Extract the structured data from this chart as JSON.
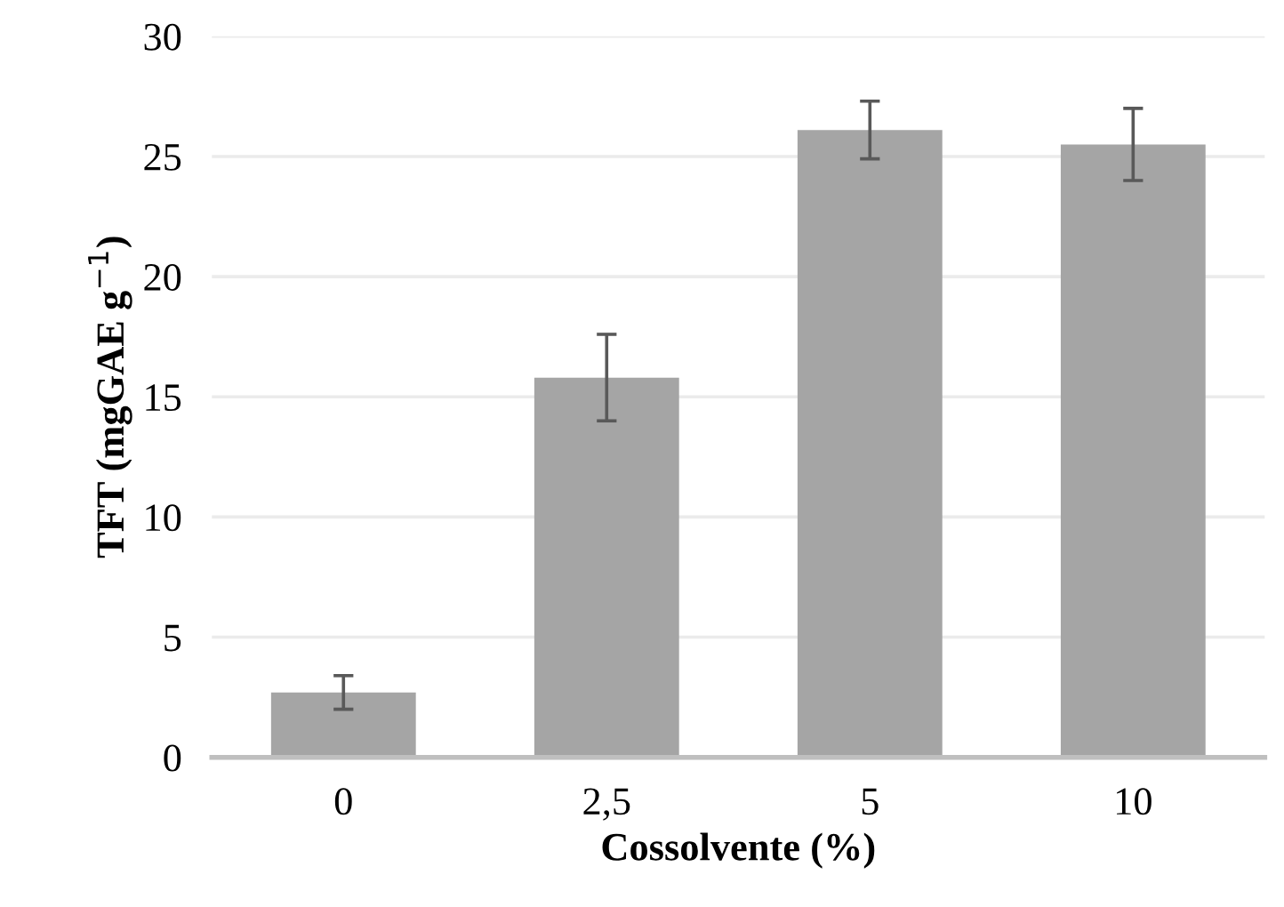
{
  "chart_data": {
    "type": "bar",
    "xlabel": "Cossolvente (%)",
    "ylabel": "TFT (mgGAE g$^{−1}$)",
    "categories": [
      "0",
      "2,5",
      "5",
      "10"
    ],
    "series": [
      {
        "color": "#a5a5a5",
        "values": [
          2.7,
          15.8,
          26.1,
          25.5
        ],
        "errors": [
          0.7,
          1.8,
          1.2,
          1.5
        ]
      }
    ],
    "ylim": [
      0,
      30
    ],
    "yticks": [
      0,
      5,
      10,
      15,
      20,
      25,
      30
    ],
    "grid": "y",
    "legend": false
  }
}
